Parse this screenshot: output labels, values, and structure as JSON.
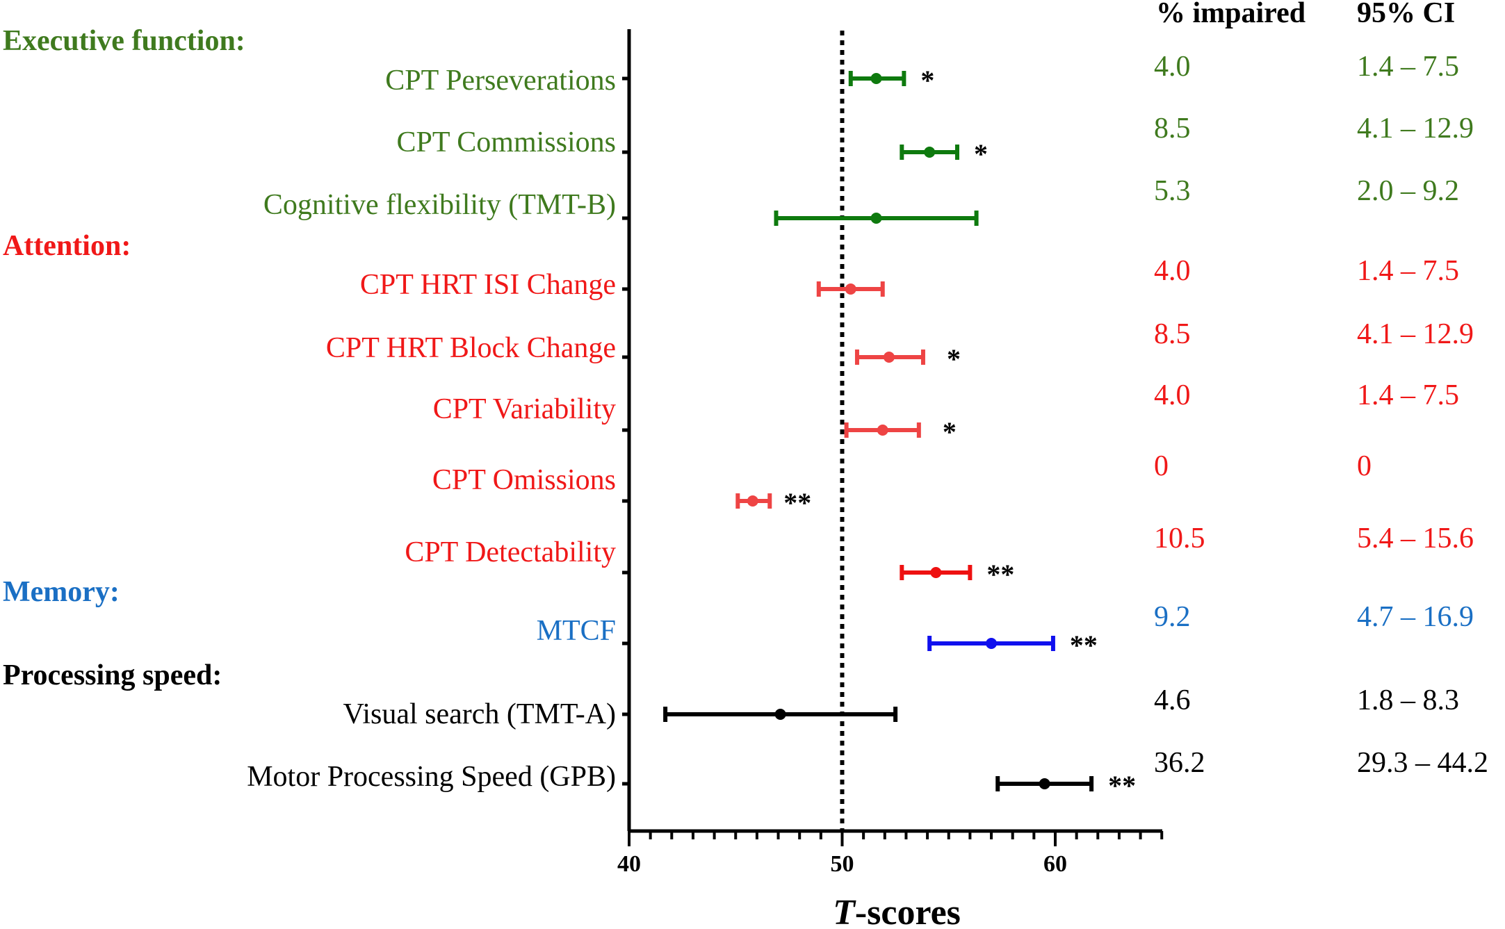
{
  "chart_data": {
    "type": "forest",
    "xlabel": "T-scores",
    "xlabel_italic_part": "T",
    "xlabel_rest": "-scores",
    "xlim": [
      40,
      65
    ],
    "x_ticks": [
      40,
      50,
      60
    ],
    "x_minor_step": 1,
    "reference_line": 50,
    "column_headers": {
      "impaired": "% impaired",
      "ci": "95% CI"
    },
    "domains": [
      {
        "name": "Executive function:",
        "color": "#3f7a1e",
        "marker_color": "#0e7a0e",
        "items": [
          {
            "label": "CPT Perseverations",
            "estimate": 51.6,
            "lower": 50.4,
            "upper": 52.9,
            "sig": "*",
            "impaired": "4.0",
            "ci": "1.4 – 7.5"
          },
          {
            "label": "CPT Commissions",
            "estimate": 54.1,
            "lower": 52.8,
            "upper": 55.4,
            "sig": "*",
            "impaired": "8.5",
            "ci": "4.1 – 12.9"
          },
          {
            "label": "Cognitive flexibility (TMT-B)",
            "estimate": 51.6,
            "lower": 46.9,
            "upper": 56.3,
            "sig": "",
            "impaired": "5.3",
            "ci": "2.0 – 9.2"
          }
        ]
      },
      {
        "name": "Attention:",
        "color": "#f01818",
        "marker_color": "#ee4444",
        "items": [
          {
            "label": "CPT HRT ISI Change",
            "estimate": 50.4,
            "lower": 48.9,
            "upper": 51.9,
            "sig": "",
            "impaired": "4.0",
            "ci": "1.4 – 7.5"
          },
          {
            "label": "CPT HRT Block Change",
            "estimate": 52.2,
            "lower": 50.7,
            "upper": 53.8,
            "sig": "*",
            "impaired": "8.5",
            "ci": "4.1 – 12.9"
          },
          {
            "label": "CPT Variability",
            "estimate": 51.9,
            "lower": 50.2,
            "upper": 53.6,
            "sig": "*",
            "impaired": "4.0",
            "ci": "1.4 – 7.5"
          },
          {
            "label": "CPT Omissions",
            "estimate": 45.8,
            "lower": 45.1,
            "upper": 46.6,
            "sig": "**",
            "impaired": "0",
            "ci": "0"
          },
          {
            "label": "CPT Detectability",
            "estimate": 54.4,
            "lower": 52.8,
            "upper": 56.0,
            "sig": "**",
            "impaired": "10.5",
            "ci": "5.4 – 15.6",
            "marker_color": "#ee1111"
          }
        ]
      },
      {
        "name": "Memory:",
        "color": "#1a6fc4",
        "marker_color": "#1010ee",
        "items": [
          {
            "label": "MTCF",
            "estimate": 57.0,
            "lower": 54.1,
            "upper": 59.9,
            "sig": "**",
            "impaired": "9.2",
            "ci": "4.7 – 16.9"
          }
        ]
      },
      {
        "name": "Processing speed:",
        "color": "#000000",
        "marker_color": "#000000",
        "items": [
          {
            "label": "Visual search (TMT-A)",
            "estimate": 47.1,
            "lower": 41.7,
            "upper": 52.5,
            "sig": "",
            "impaired": "4.6",
            "ci": "1.8 – 8.3"
          },
          {
            "label": "Motor Processing Speed (GPB)",
            "estimate": 59.5,
            "lower": 57.3,
            "upper": 61.7,
            "sig": "**",
            "impaired": "36.2",
            "ci": "29.3 – 44.2"
          }
        ]
      }
    ]
  }
}
